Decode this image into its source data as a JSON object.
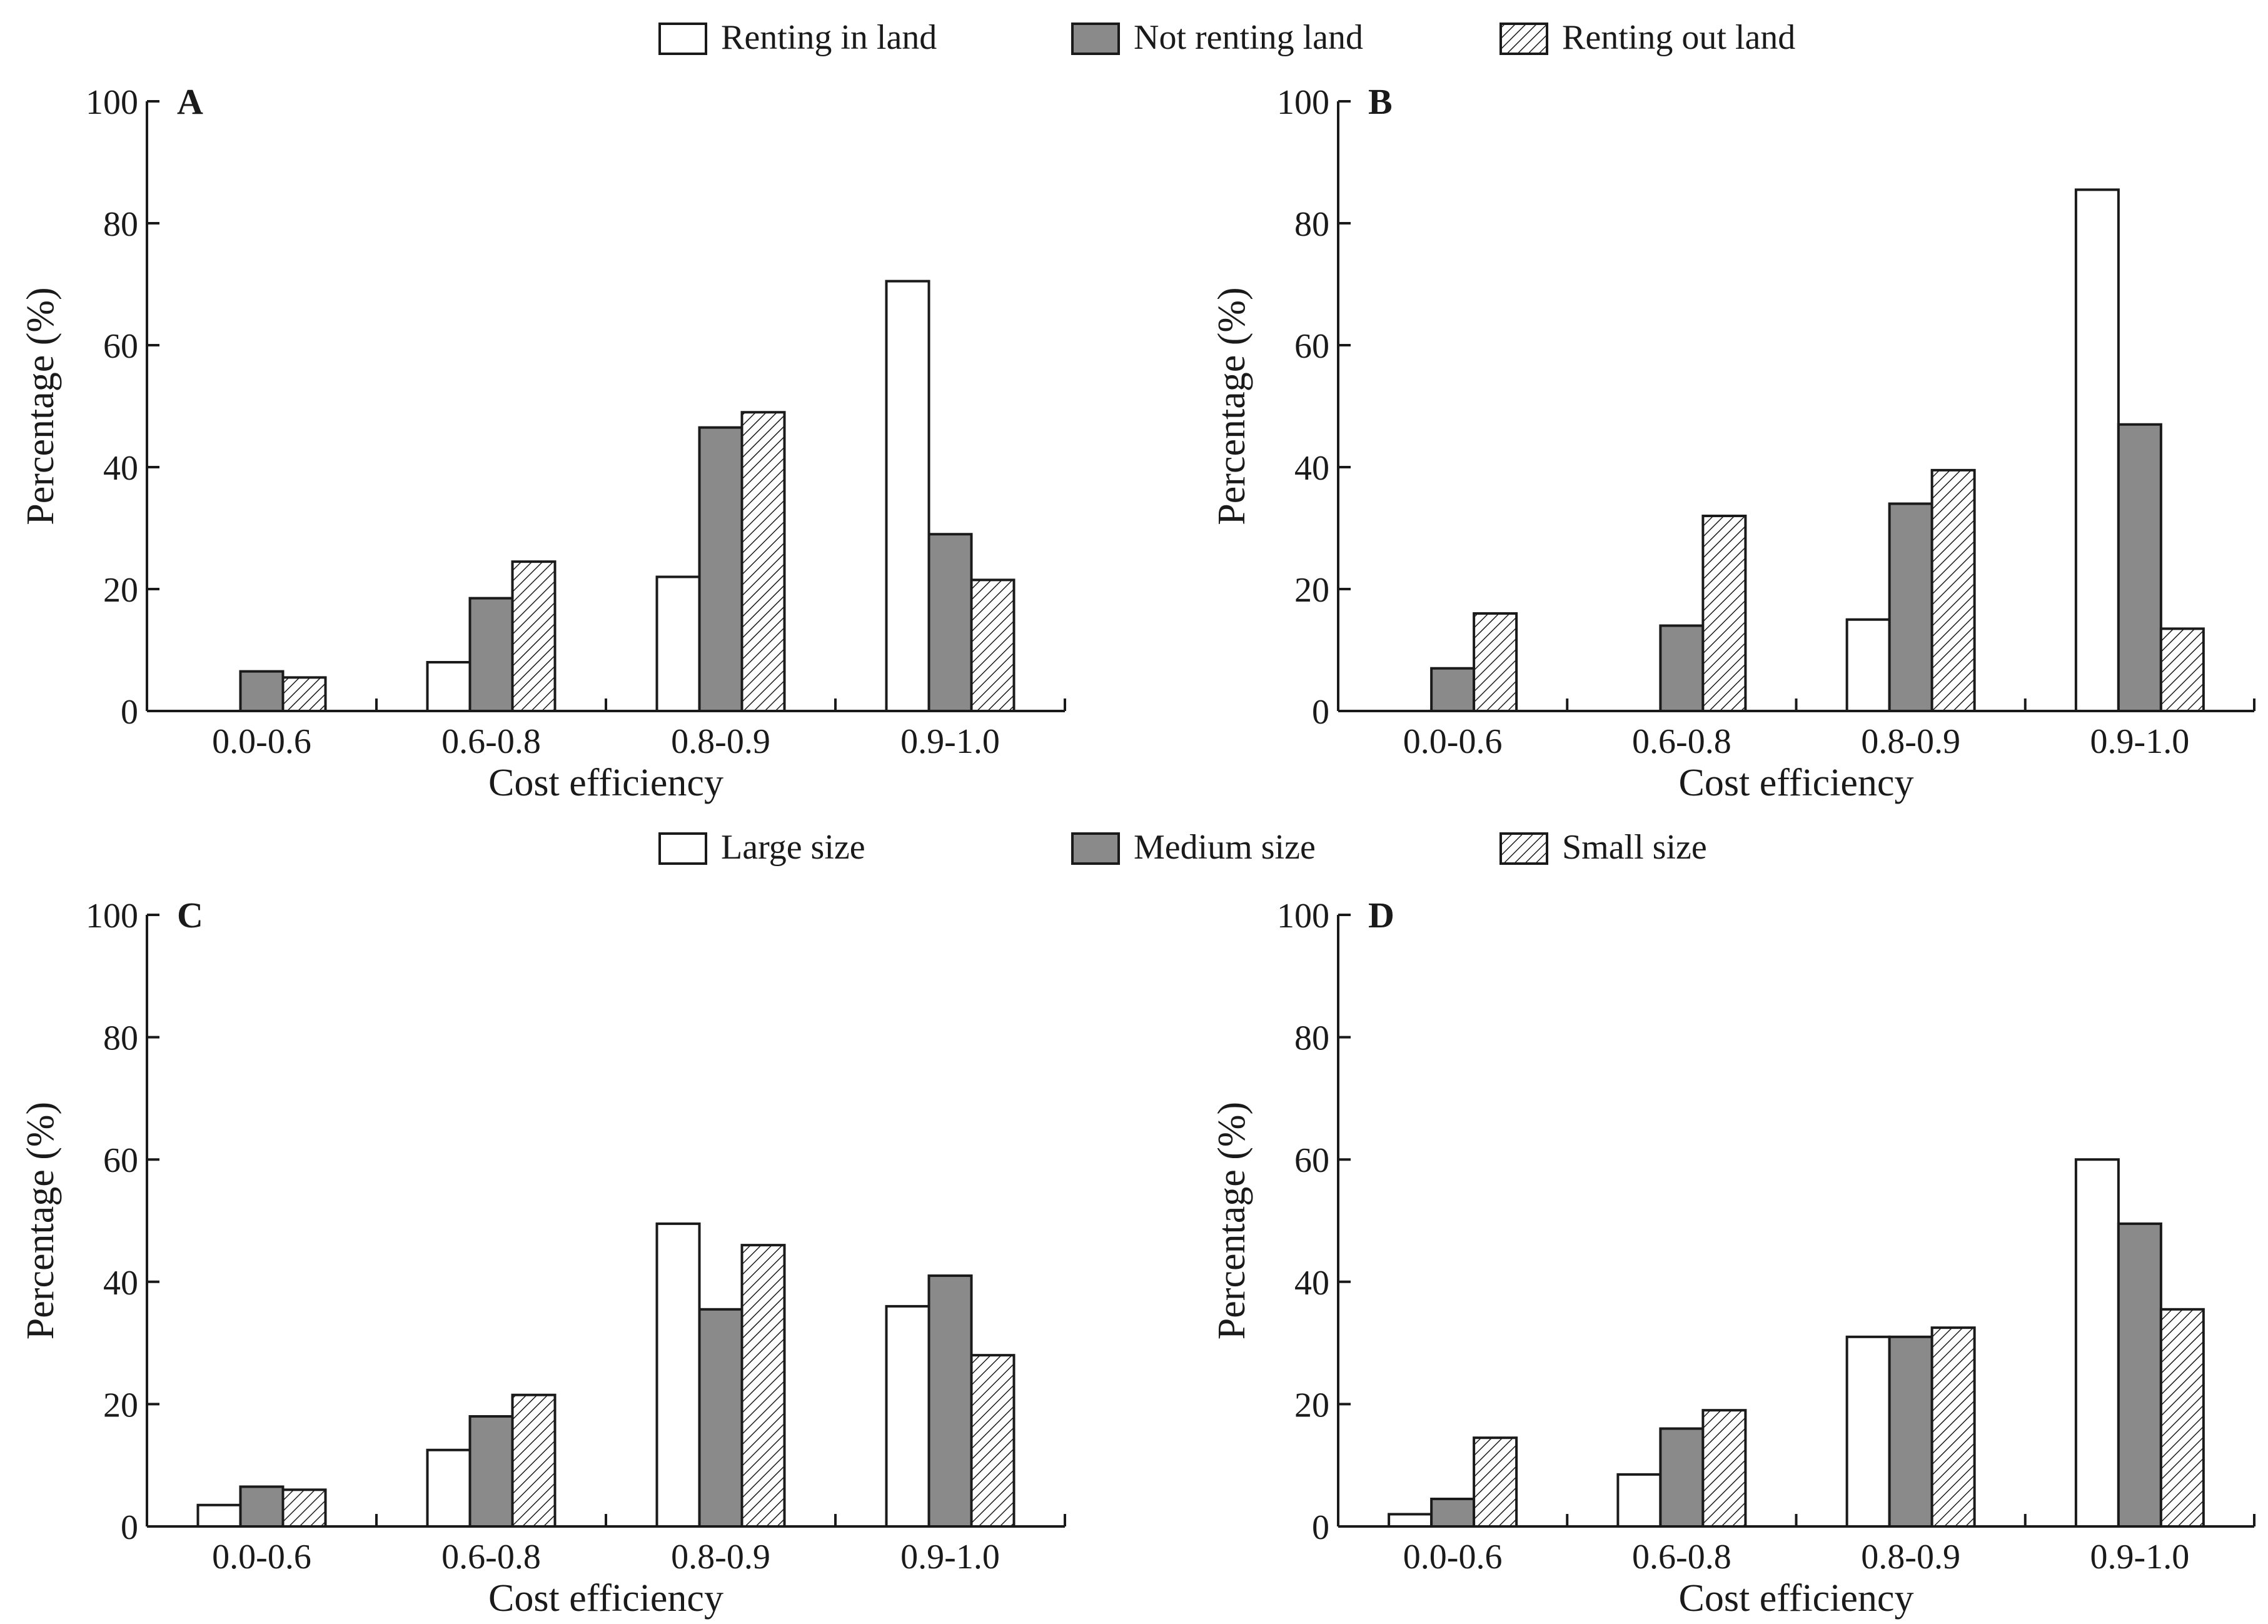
{
  "legend_top": {
    "items": [
      {
        "label": "Renting in land",
        "style": "white"
      },
      {
        "label": "Not renting land",
        "style": "gray"
      },
      {
        "label": "Renting out land",
        "style": "hatch"
      }
    ]
  },
  "legend_bottom": {
    "items": [
      {
        "label": "Large size",
        "style": "white"
      },
      {
        "label": "Medium size",
        "style": "gray"
      },
      {
        "label": "Small size",
        "style": "hatch"
      }
    ]
  },
  "colors": {
    "white": "#ffffff",
    "gray": "#8a8a8a",
    "stroke": "#1a1a1a"
  },
  "chart_data": [
    {
      "panel": "A",
      "type": "bar",
      "categories": [
        "0.0-0.6",
        "0.6-0.8",
        "0.8-0.9",
        "0.9-1.0"
      ],
      "series": [
        {
          "name": "Renting in land",
          "values": [
            0,
            8,
            22,
            70.5
          ]
        },
        {
          "name": "Not renting land",
          "values": [
            6.5,
            18.5,
            46.5,
            29
          ]
        },
        {
          "name": "Renting out land",
          "values": [
            5.5,
            24.5,
            49,
            21.5
          ]
        }
      ],
      "xlabel": "Cost efficiency",
      "ylabel": "Percentage (%)",
      "ylim": [
        0,
        100
      ],
      "yticks": [
        "0",
        "20",
        "40",
        "60",
        "80",
        "100"
      ]
    },
    {
      "panel": "B",
      "type": "bar",
      "categories": [
        "0.0-0.6",
        "0.6-0.8",
        "0.8-0.9",
        "0.9-1.0"
      ],
      "series": [
        {
          "name": "Renting in land",
          "values": [
            0,
            0,
            15,
            85.5
          ]
        },
        {
          "name": "Not renting land",
          "values": [
            7,
            14,
            34,
            47
          ]
        },
        {
          "name": "Renting out land",
          "values": [
            16,
            32,
            39.5,
            13.5
          ]
        }
      ],
      "xlabel": "Cost efficiency",
      "ylabel": "Percentage (%)",
      "ylim": [
        0,
        100
      ],
      "yticks": [
        "0",
        "20",
        "40",
        "60",
        "80",
        "100"
      ]
    },
    {
      "panel": "C",
      "type": "bar",
      "categories": [
        "0.0-0.6",
        "0.6-0.8",
        "0.8-0.9",
        "0.9-1.0"
      ],
      "series": [
        {
          "name": "Large size",
          "values": [
            3.5,
            12.5,
            49.5,
            36
          ]
        },
        {
          "name": "Medium size",
          "values": [
            6.5,
            18,
            35.5,
            41
          ]
        },
        {
          "name": "Small size",
          "values": [
            6,
            21.5,
            46,
            28
          ]
        }
      ],
      "xlabel": "Cost efficiency",
      "ylabel": "Percentage (%)",
      "ylim": [
        0,
        100
      ],
      "yticks": [
        "0",
        "20",
        "40",
        "60",
        "80",
        "100"
      ]
    },
    {
      "panel": "D",
      "type": "bar",
      "categories": [
        "0.0-0.6",
        "0.6-0.8",
        "0.8-0.9",
        "0.9-1.0"
      ],
      "series": [
        {
          "name": "Large size",
          "values": [
            2,
            8.5,
            31,
            60
          ]
        },
        {
          "name": "Medium size",
          "values": [
            4.5,
            16,
            31,
            49.5
          ]
        },
        {
          "name": "Small size",
          "values": [
            14.5,
            19,
            32.5,
            35.5
          ]
        }
      ],
      "xlabel": "Cost efficiency",
      "ylabel": "Percentage (%)",
      "ylim": [
        0,
        100
      ],
      "yticks": [
        "0",
        "20",
        "40",
        "60",
        "80",
        "100"
      ]
    }
  ]
}
